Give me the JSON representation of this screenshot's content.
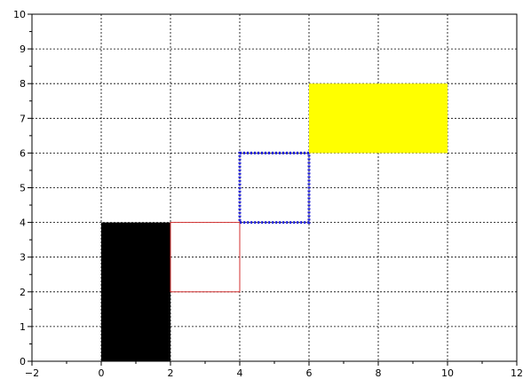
{
  "chart_data": {
    "type": "scatter",
    "title": "",
    "xlabel": "",
    "ylabel": "",
    "xlim": [
      -2,
      12
    ],
    "ylim": [
      0,
      10
    ],
    "x_ticks": [
      -2,
      0,
      2,
      4,
      6,
      8,
      10,
      12
    ],
    "y_ticks": [
      0,
      1,
      2,
      3,
      4,
      5,
      6,
      7,
      8,
      9,
      10
    ],
    "x_tick_labels": [
      "−2",
      "0",
      "2",
      "4",
      "6",
      "8",
      "10",
      "12"
    ],
    "y_tick_labels": [
      "0",
      "1",
      "2",
      "3",
      "4",
      "5",
      "6",
      "7",
      "8",
      "9",
      "10"
    ],
    "grid": true,
    "grid_style": "dotted",
    "shapes": [
      {
        "kind": "rectangle",
        "x": 0,
        "y": 0,
        "width": 2,
        "height": 4,
        "fill": "#000000",
        "stroke": "none",
        "stroke_style": "solid"
      },
      {
        "kind": "rectangle",
        "x": 2,
        "y": 2,
        "width": 2,
        "height": 2,
        "fill": "none",
        "stroke": "#d32f2f",
        "stroke_style": "solid"
      },
      {
        "kind": "rectangle",
        "x": 4,
        "y": 4,
        "width": 2,
        "height": 2,
        "fill": "none",
        "stroke": "#1a1adc",
        "stroke_style": "dotted"
      },
      {
        "kind": "rectangle",
        "x": 6,
        "y": 6,
        "width": 4,
        "height": 2,
        "fill": "#ffff00",
        "stroke": "none",
        "stroke_style": "solid"
      }
    ]
  }
}
